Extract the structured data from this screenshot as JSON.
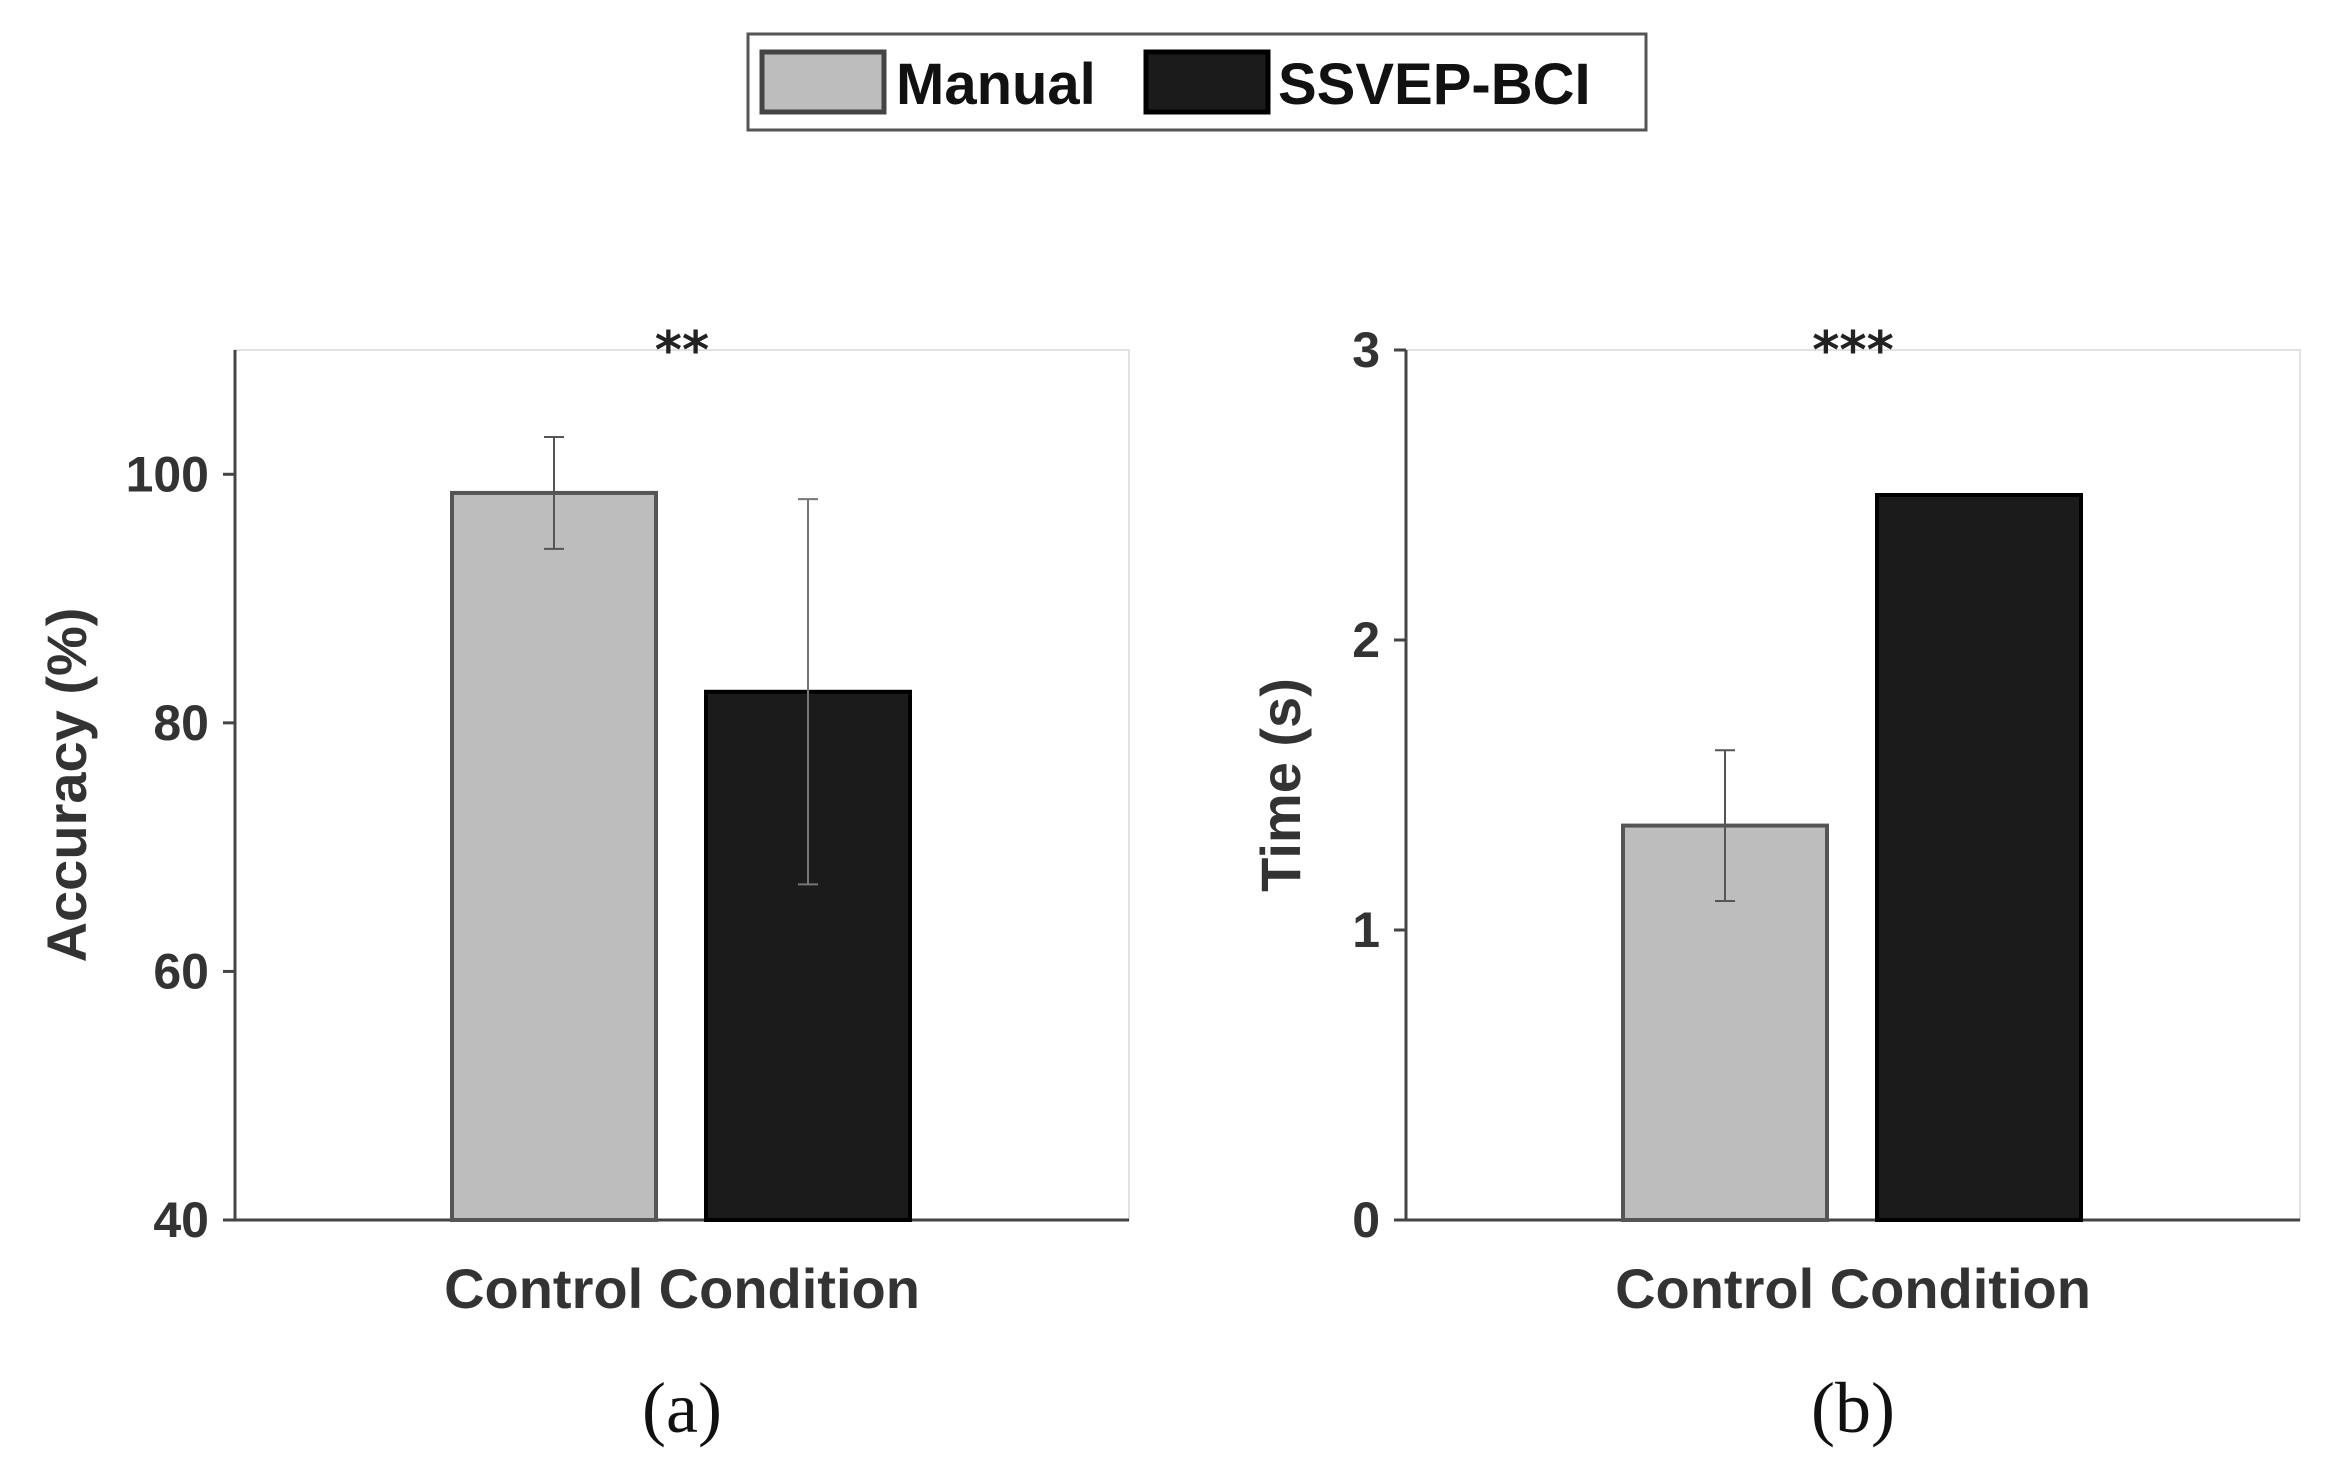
{
  "legend": {
    "items": [
      {
        "label": "Manual",
        "color": "#bdbdbd"
      },
      {
        "label": "SSVEP-BCI",
        "color": "#1b1b1b"
      }
    ]
  },
  "chart_data": [
    {
      "type": "bar",
      "panel_label": "(a)",
      "title": "",
      "xlabel": "Control Condition",
      "ylabel": "Accuracy (%)",
      "ylim": [
        40,
        110
      ],
      "yticks": [
        40,
        60,
        80,
        100
      ],
      "categories": [
        "Control Condition"
      ],
      "significance": "**",
      "series": [
        {
          "name": "Manual",
          "values": [
            98.5
          ],
          "error": [
            4.5
          ],
          "color": "#bdbdbd"
        },
        {
          "name": "SSVEP-BCI",
          "values": [
            82.5
          ],
          "error": [
            15.5
          ],
          "color": "#1b1b1b"
        }
      ]
    },
    {
      "type": "bar",
      "panel_label": "(b)",
      "title": "",
      "xlabel": "Control Condition",
      "ylabel": "Time (s)",
      "ylim": [
        0,
        3
      ],
      "yticks": [
        0,
        1,
        2,
        3
      ],
      "categories": [
        "Control Condition"
      ],
      "significance": "***",
      "series": [
        {
          "name": "Manual",
          "values": [
            1.36
          ],
          "error": [
            0.26
          ],
          "color": "#bdbdbd"
        },
        {
          "name": "SSVEP-BCI",
          "values": [
            2.5
          ],
          "error": [
            0
          ],
          "color": "#1b1b1b"
        }
      ]
    }
  ]
}
